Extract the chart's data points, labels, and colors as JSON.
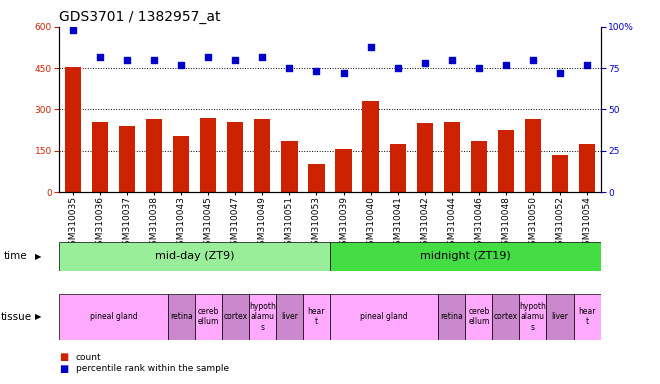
{
  "title": "GDS3701 / 1382957_at",
  "samples": [
    "GSM310035",
    "GSM310036",
    "GSM310037",
    "GSM310038",
    "GSM310043",
    "GSM310045",
    "GSM310047",
    "GSM310049",
    "GSM310051",
    "GSM310053",
    "GSM310039",
    "GSM310040",
    "GSM310041",
    "GSM310042",
    "GSM310044",
    "GSM310046",
    "GSM310048",
    "GSM310050",
    "GSM310052",
    "GSM310054"
  ],
  "counts": [
    455,
    255,
    240,
    265,
    205,
    270,
    255,
    265,
    185,
    100,
    155,
    330,
    175,
    250,
    255,
    185,
    225,
    265,
    135,
    175
  ],
  "percentiles": [
    98,
    82,
    80,
    80,
    77,
    82,
    80,
    82,
    75,
    73,
    72,
    88,
    75,
    78,
    80,
    75,
    77,
    80,
    72,
    77
  ],
  "ylim_left": [
    0,
    600
  ],
  "ylim_right": [
    0,
    100
  ],
  "yticks_left": [
    0,
    150,
    300,
    450,
    600
  ],
  "yticks_right": [
    0,
    25,
    50,
    75,
    100
  ],
  "bar_color": "#cc2200",
  "dot_color": "#0000cc",
  "time_groups": [
    {
      "label": "mid-day (ZT9)",
      "start": 0,
      "end": 10,
      "color": "#99ee99"
    },
    {
      "label": "midnight (ZT19)",
      "start": 10,
      "end": 20,
      "color": "#44dd44"
    }
  ],
  "tissue_groups": [
    {
      "label": "pineal gland",
      "start": 0,
      "end": 4,
      "color": "#ffaaff"
    },
    {
      "label": "retina",
      "start": 4,
      "end": 5,
      "color": "#cc88cc"
    },
    {
      "label": "cereb\nellum",
      "start": 5,
      "end": 6,
      "color": "#ffaaff"
    },
    {
      "label": "cortex",
      "start": 6,
      "end": 7,
      "color": "#cc88cc"
    },
    {
      "label": "hypoth\nalamu\ns",
      "start": 7,
      "end": 8,
      "color": "#ffaaff"
    },
    {
      "label": "liver",
      "start": 8,
      "end": 9,
      "color": "#cc88cc"
    },
    {
      "label": "hear\nt",
      "start": 9,
      "end": 10,
      "color": "#ffaaff"
    },
    {
      "label": "pineal gland",
      "start": 10,
      "end": 14,
      "color": "#ffaaff"
    },
    {
      "label": "retina",
      "start": 14,
      "end": 15,
      "color": "#cc88cc"
    },
    {
      "label": "cereb\nellum",
      "start": 15,
      "end": 16,
      "color": "#ffaaff"
    },
    {
      "label": "cortex",
      "start": 16,
      "end": 17,
      "color": "#cc88cc"
    },
    {
      "label": "hypoth\nalamu\ns",
      "start": 17,
      "end": 18,
      "color": "#ffaaff"
    },
    {
      "label": "liver",
      "start": 18,
      "end": 19,
      "color": "#cc88cc"
    },
    {
      "label": "hear\nt",
      "start": 19,
      "end": 20,
      "color": "#ffaaff"
    }
  ],
  "title_fontsize": 10,
  "tick_fontsize": 6.5,
  "label_fontsize": 7.5,
  "annotation_fontsize": 8,
  "tissue_fontsize": 5.5
}
